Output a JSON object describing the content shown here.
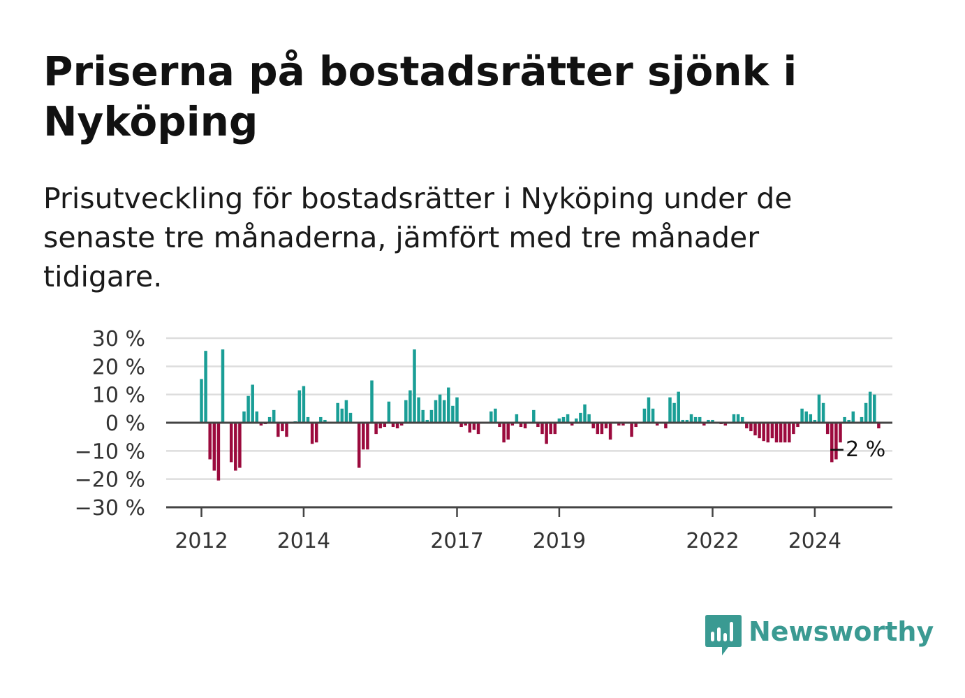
{
  "title": "Priserna på bostadsrätter sjönk i Nyköping",
  "subtitle": "Prisutveckling för bostadsrätter i Nyköping under de senaste tre månaderna, jämfört med tre månader tidigare.",
  "brand": "Newsworthy",
  "colors": {
    "positive": "#1a9e96",
    "negative": "#9b0a3d",
    "grid": "#dddddd",
    "axis": "#444444",
    "brand": "#3a9a92"
  },
  "chart_data": {
    "type": "bar",
    "x_start": "2012-01",
    "x_interval": "month",
    "ylim": [
      -30,
      30
    ],
    "ytick_values": [
      30,
      20,
      10,
      0,
      -10,
      -20,
      -30
    ],
    "ytick_labels": [
      "30 %",
      "20 %",
      "10 %",
      "0 %",
      "−10 %",
      "−20 %",
      "−30 %"
    ],
    "xtick_months": [
      "2012-01",
      "2014-01",
      "2017-01",
      "2019-01",
      "2022-01",
      "2024-01"
    ],
    "xtick_labels": [
      "2012",
      "2014",
      "2017",
      "2019",
      "2022",
      "2024"
    ],
    "grid": true,
    "end_label": "−2 %",
    "values": [
      15.5,
      25.5,
      -13,
      -17,
      -20.5,
      26,
      0,
      -14,
      -17,
      -16,
      4,
      9.5,
      13.5,
      4,
      -1,
      -0.5,
      2,
      4.5,
      -5,
      -3,
      -5,
      0,
      0.5,
      11.5,
      13,
      2,
      -7.5,
      -7,
      2,
      1,
      0,
      0,
      7,
      5,
      8,
      3.5,
      0,
      -16,
      -9.5,
      -9.5,
      15,
      -4,
      -2,
      -1.5,
      7.5,
      -1.5,
      -2,
      -1,
      8,
      11.5,
      26,
      9,
      4.5,
      1,
      4.5,
      8,
      10,
      8,
      12.5,
      6,
      9,
      -1.5,
      -1,
      -3.5,
      -2.5,
      -4,
      0,
      0,
      4,
      5,
      -1.5,
      -7,
      -6,
      -1,
      3,
      -1.5,
      -2,
      0,
      4.5,
      -1.5,
      -4,
      -7.5,
      -4,
      -4,
      1.5,
      2,
      3,
      -1,
      1.5,
      3.5,
      6.5,
      3,
      -2,
      -4,
      -4,
      -2,
      -6,
      0,
      -1,
      -1,
      0,
      -5,
      -1.5,
      0,
      5,
      9,
      5,
      -1,
      0,
      -2,
      9,
      7,
      11,
      1,
      1,
      3,
      2,
      2,
      -1,
      1,
      1,
      0,
      -0.5,
      -1,
      0,
      3,
      3,
      2,
      -2,
      -3,
      -4.5,
      -5.5,
      -6.5,
      -7,
      -5.5,
      -7,
      -7,
      -7,
      -7,
      -4,
      -1.5,
      5,
      4,
      3,
      1,
      10,
      7,
      -4,
      -14,
      -13,
      -7,
      2,
      1,
      4,
      0,
      2,
      7,
      11,
      10,
      -2
    ]
  }
}
